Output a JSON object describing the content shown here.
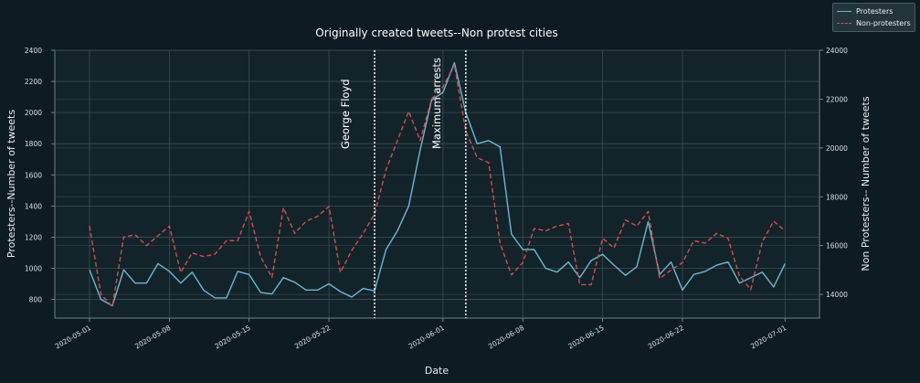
{
  "chart_data": {
    "type": "line",
    "title": "Originally created tweets--Non protest cities",
    "xlabel": "Date",
    "ylabel_left": "Protesters--Number of tweets",
    "ylabel_right": "Non Protesters-- Number of tweets",
    "x_start": "2020-05-01",
    "x_ticks": [
      "2020-05-01",
      "2020-05-08",
      "2020-05-15",
      "2020-05-22",
      "2020-06-01",
      "2020-06-08",
      "2020-06-15",
      "2020-06-22",
      "2020-07-01"
    ],
    "ylim_left": [
      680,
      2400
    ],
    "yticks_left": [
      800,
      1000,
      1200,
      1400,
      1600,
      1800,
      2000,
      2200,
      2400
    ],
    "ylim_right": [
      13030,
      24000
    ],
    "yticks_right": [
      14000,
      16000,
      18000,
      20000,
      22000,
      24000
    ],
    "grid": true,
    "legend_position": "top-right",
    "series": [
      {
        "name": "Protesters",
        "axis": "left",
        "color": "#6bb8d0",
        "style": "solid",
        "values": [
          990,
          800,
          760,
          990,
          905,
          905,
          1030,
          980,
          905,
          975,
          860,
          810,
          810,
          980,
          960,
          845,
          835,
          940,
          910,
          860,
          860,
          900,
          850,
          815,
          870,
          855,
          1120,
          1240,
          1400,
          1760,
          2080,
          2130,
          2320,
          2000,
          1800,
          1820,
          1780,
          1220,
          1120,
          1120,
          1000,
          975,
          1040,
          940,
          1050,
          1090,
          1020,
          955,
          1010,
          1300,
          960,
          1040,
          860,
          960,
          980,
          1020,
          1040,
          905,
          940,
          975,
          880,
          1030
        ]
      },
      {
        "name": "Non-protesters",
        "axis": "right",
        "color": "#d05050",
        "style": "dashed",
        "values": [
          16800,
          14000,
          13500,
          16350,
          16450,
          16000,
          16400,
          16800,
          14900,
          15700,
          15550,
          15650,
          16200,
          16200,
          17400,
          15550,
          14700,
          17550,
          16500,
          17000,
          17200,
          17600,
          14900,
          15800,
          16500,
          17300,
          19100,
          20300,
          21500,
          20300,
          22000,
          22500,
          23400,
          20700,
          19600,
          19400,
          16100,
          14800,
          15300,
          16700,
          16600,
          16800,
          16900,
          14400,
          14400,
          16300,
          15900,
          17050,
          16800,
          17400,
          14650,
          15000,
          15300,
          16200,
          16100,
          16500,
          16300,
          14750,
          14200,
          16150,
          17000,
          16600
        ]
      }
    ],
    "annotations": [
      {
        "label": "George Floyd",
        "x_index": 25
      },
      {
        "label": "Maximum arrests",
        "x_index": 33
      }
    ]
  }
}
